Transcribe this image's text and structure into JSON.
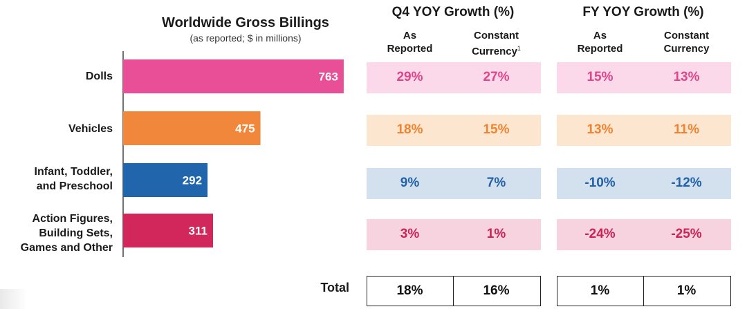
{
  "chart_data": {
    "type": "bar",
    "orientation": "horizontal",
    "title": "Worldwide Gross Billings",
    "subtitle": "(as reported; $ in millions)",
    "categories": [
      "Dolls",
      "Vehicles",
      "Infant, Toddler, and Preschool",
      "Action Figures, Building Sets, Games and Other"
    ],
    "category_lines": [
      [
        "Dolls"
      ],
      [
        "Vehicles"
      ],
      [
        "Infant, Toddler,",
        "and Preschool"
      ],
      [
        "Action Figures,",
        "Building Sets,",
        "Games and Other"
      ]
    ],
    "values": [
      763,
      475,
      292,
      311
    ],
    "value_labels": [
      "763",
      "475",
      "292",
      "311"
    ],
    "colors": [
      "#e94f96",
      "#f0873a",
      "#2166ad",
      "#d2275a"
    ],
    "xlim": [
      0,
      800
    ],
    "grid": false
  },
  "growth_table": {
    "groups": [
      {
        "title": "Q4 YOY Growth (%)",
        "columns": [
          {
            "label_lines": [
              "As",
              "Reported"
            ],
            "footnote": ""
          },
          {
            "label_lines": [
              "Constant",
              "Currency"
            ],
            "footnote": "1"
          }
        ]
      },
      {
        "title": "FY YOY Growth (%)",
        "columns": [
          {
            "label_lines": [
              "As",
              "Reported"
            ],
            "footnote": ""
          },
          {
            "label_lines": [
              "Constant",
              "Currency"
            ],
            "footnote": ""
          }
        ]
      }
    ],
    "rows": [
      {
        "values": [
          "29%",
          "27%",
          "15%",
          "13%"
        ],
        "text_color": "#e0458a",
        "band_color": "#fbd9ea"
      },
      {
        "values": [
          "18%",
          "15%",
          "13%",
          "11%"
        ],
        "text_color": "#ee8432",
        "band_color": "#fde6cf"
      },
      {
        "values": [
          "9%",
          "7%",
          "-10%",
          "-12%"
        ],
        "text_color": "#2261a8",
        "band_color": "#d3e1ef"
      },
      {
        "values": [
          "3%",
          "1%",
          "-24%",
          "-25%"
        ],
        "text_color": "#c92456",
        "band_color": "#f6d3df"
      }
    ],
    "total": {
      "label": "Total",
      "values": [
        "18%",
        "16%",
        "1%",
        "1%"
      ]
    }
  }
}
